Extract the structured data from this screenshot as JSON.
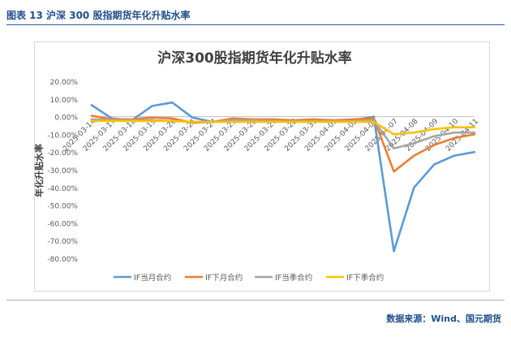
{
  "figure": {
    "caption": "图表 13  沪深 300 股指期货年化升贴水率",
    "source": "数据来源：Wind、国元期货"
  },
  "chart_data": {
    "type": "line",
    "title": "沪深300股指期货年化升贴水率",
    "xlabel": "",
    "ylabel": "年化升贴水率",
    "ylim": [
      -80,
      20
    ],
    "y_ticks": [
      20,
      10,
      0,
      -10,
      -20,
      -30,
      -40,
      -50,
      -60,
      -70,
      -80
    ],
    "y_tick_labels": [
      "20.00%",
      "10.00%",
      "0.00%",
      "-10.00%",
      "-20.00%",
      "-30.00%",
      "-40.00%",
      "-50.00%",
      "-60.00%",
      "-70.00%",
      "-80.00%"
    ],
    "grid": false,
    "legend": "bottom",
    "categories": [
      "2025-03-14",
      "2025-03-17",
      "2025-03-18",
      "2025-03-19",
      "2025-03-20",
      "2025-03-21",
      "2025-03-24",
      "2025-03-25",
      "2025-03-26",
      "2025-03-27",
      "2025-03-28",
      "2025-03-31",
      "2025-04-01",
      "2025-04-02",
      "2025-04-03",
      "2025-04-07",
      "2025-04-08",
      "2025-04-09",
      "2025-04-10",
      "2025-04-11"
    ],
    "series": [
      {
        "name": "IF当月合约",
        "color": "#5b9bd5",
        "values": [
          6.5,
          -1.0,
          -2.0,
          6.0,
          8.0,
          -0.5,
          -3.0,
          -1.5,
          -2.0,
          -2.0,
          -2.5,
          -2.0,
          -2.5,
          -2.0,
          0.0,
          -76.0,
          -40.0,
          -27.0,
          -22.0,
          -20.0
        ]
      },
      {
        "name": "IF下月合约",
        "color": "#ed7d31",
        "values": [
          0.5,
          -1.5,
          -1.5,
          -0.5,
          -1.0,
          -3.5,
          -3.0,
          -1.0,
          -1.5,
          -1.5,
          -2.0,
          -1.5,
          -2.0,
          -1.5,
          -1.0,
          -31.0,
          -22.0,
          -16.0,
          -12.0,
          -10.0
        ]
      },
      {
        "name": "IF当季合约",
        "color": "#a5a5a5",
        "values": [
          -1.5,
          -2.0,
          -2.0,
          -2.0,
          -2.5,
          -3.0,
          -3.0,
          -2.0,
          -2.0,
          -2.5,
          -2.5,
          -2.5,
          -2.5,
          -2.5,
          -2.0,
          -18.0,
          -15.0,
          -11.0,
          -9.0,
          -9.0
        ]
      },
      {
        "name": "IF下季合约",
        "color": "#ffc000",
        "values": [
          -2.5,
          -2.5,
          -2.5,
          -2.5,
          -2.5,
          -3.0,
          -3.0,
          -3.0,
          -3.0,
          -3.0,
          -3.0,
          -3.0,
          -3.0,
          -3.0,
          -3.0,
          -10.0,
          -9.0,
          -7.0,
          -6.0,
          -6.0
        ]
      }
    ]
  }
}
